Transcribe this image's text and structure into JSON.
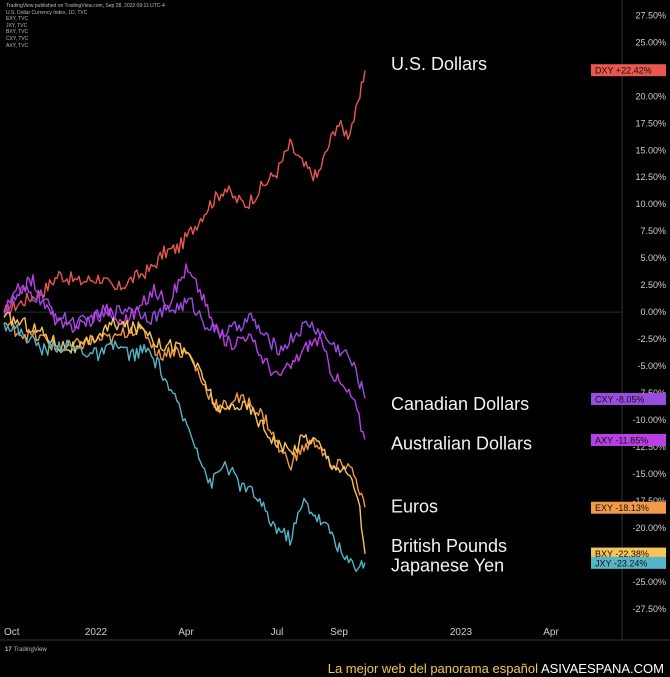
{
  "header": {
    "lines": [
      "TradingView published on TradingView.com, Sep 28, 2022 09:11 UTC-4",
      "U.S. Dollar Currency Index, 1D, TVC",
      "EXY, TVC",
      "JXY, TVC",
      "BXY, TVC",
      "CXY, TVC",
      "AXY, TVC"
    ]
  },
  "footer": {
    "logo_text": "TradingView"
  },
  "watermark": {
    "text": "La mejor web del panorama español",
    "site": "ASIVAESPANA.COM"
  },
  "colors": {
    "background": "#000000",
    "DXY": "#e8584f",
    "CXY": "#9a4ce0",
    "AXY": "#b93fe6",
    "EXY": "#f39a48",
    "BXY": "#f6c458",
    "JXY": "#55b4c6"
  },
  "chart_data": {
    "type": "line",
    "y_unit": "percent change",
    "ylim": [
      -29,
      28
    ],
    "y_ticks": [
      27.5,
      25,
      22.5,
      20,
      17.5,
      15,
      12.5,
      10,
      7.5,
      5,
      2.5,
      0,
      -2.5,
      -5,
      -7.5,
      -10,
      -12.5,
      -15,
      -17.5,
      -20,
      -22.5,
      -25,
      -27.5
    ],
    "y_tick_labels": [
      "27.50%",
      "25.00%",
      "22.50%",
      "20.00%",
      "17.50%",
      "15.00%",
      "12.50%",
      "10.00%",
      "7.50%",
      "5.00%",
      "2.50%",
      "0.00%",
      "-2.50%",
      "-5.00%",
      "-7.50%",
      "-10.00%",
      "-12.50%",
      "-15.00%",
      "-17.50%",
      "-20.00%",
      "-22.50%",
      "-25.00%",
      "-27.50%"
    ],
    "x_ticks": [
      "Oct",
      "2022",
      "Apr",
      "Jul",
      "Sep",
      "2023",
      "Apr"
    ],
    "x_tick_dates": [
      "2021-10-01",
      "2022-01-01",
      "2022-04-01",
      "2022-07-01",
      "2022-09-01",
      "2023-01-01",
      "2023-04-01"
    ],
    "x_range": [
      "2021-10-01",
      "2023-06-01"
    ],
    "grid": false,
    "series": [
      {
        "name": "U.S. Dollars",
        "badge": "DXY",
        "badge_value": "+22.42%",
        "color": "#e8584f",
        "points": [
          [
            "2021-10-01",
            0
          ],
          [
            "2021-10-20",
            1
          ],
          [
            "2021-11-10",
            2
          ],
          [
            "2021-11-25",
            3.5
          ],
          [
            "2021-12-15",
            2.8
          ],
          [
            "2022-01-05",
            3.2
          ],
          [
            "2022-01-20",
            2
          ],
          [
            "2022-02-05",
            3
          ],
          [
            "2022-02-25",
            4
          ],
          [
            "2022-03-10",
            5.5
          ],
          [
            "2022-03-25",
            6
          ],
          [
            "2022-04-10",
            8
          ],
          [
            "2022-04-25",
            10
          ],
          [
            "2022-05-10",
            11.5
          ],
          [
            "2022-05-20",
            10.5
          ],
          [
            "2022-06-01",
            10
          ],
          [
            "2022-06-15",
            11.5
          ],
          [
            "2022-07-01",
            13
          ],
          [
            "2022-07-14",
            15.5
          ],
          [
            "2022-07-28",
            13.5
          ],
          [
            "2022-08-10",
            12.5
          ],
          [
            "2022-08-20",
            15
          ],
          [
            "2022-08-30",
            17.5
          ],
          [
            "2022-09-10",
            16.5
          ],
          [
            "2022-09-20",
            19
          ],
          [
            "2022-09-27",
            22.4
          ]
        ]
      },
      {
        "name": "Canadian Dollars",
        "badge": "CXY",
        "badge_value": "-8.05%",
        "color": "#9a4ce0",
        "points": [
          [
            "2021-10-01",
            0
          ],
          [
            "2021-10-20",
            2
          ],
          [
            "2021-11-10",
            1
          ],
          [
            "2021-11-25",
            -0.5
          ],
          [
            "2021-12-15",
            -1
          ],
          [
            "2022-01-05",
            -0.5
          ],
          [
            "2022-01-20",
            0
          ],
          [
            "2022-02-05",
            0.5
          ],
          [
            "2022-02-25",
            -0.5
          ],
          [
            "2022-03-10",
            0
          ],
          [
            "2022-03-25",
            0.5
          ],
          [
            "2022-04-05",
            1
          ],
          [
            "2022-04-20",
            -1
          ],
          [
            "2022-05-05",
            -2
          ],
          [
            "2022-05-20",
            -1.5
          ],
          [
            "2022-06-05",
            -0.5
          ],
          [
            "2022-06-20",
            -2.5
          ],
          [
            "2022-07-05",
            -3.5
          ],
          [
            "2022-07-15",
            -2.5
          ],
          [
            "2022-08-01",
            -1
          ],
          [
            "2022-08-15",
            -2
          ],
          [
            "2022-08-25",
            -3
          ],
          [
            "2022-09-10",
            -4
          ],
          [
            "2022-09-20",
            -6
          ],
          [
            "2022-09-27",
            -8
          ]
        ]
      },
      {
        "name": "Australian Dollars",
        "badge": "AXY",
        "badge_value": "-11.85%",
        "color": "#b93fe6",
        "points": [
          [
            "2021-10-01",
            0
          ],
          [
            "2021-10-15",
            2
          ],
          [
            "2021-10-30",
            3
          ],
          [
            "2021-11-15",
            0
          ],
          [
            "2021-12-01",
            -1.5
          ],
          [
            "2021-12-20",
            -1
          ],
          [
            "2022-01-10",
            0.5
          ],
          [
            "2022-01-25",
            -1
          ],
          [
            "2022-02-10",
            0
          ],
          [
            "2022-02-28",
            2
          ],
          [
            "2022-03-15",
            1
          ],
          [
            "2022-04-01",
            4
          ],
          [
            "2022-04-15",
            2
          ],
          [
            "2022-04-30",
            -1.5
          ],
          [
            "2022-05-15",
            -3
          ],
          [
            "2022-06-01",
            -2
          ],
          [
            "2022-06-15",
            -4
          ],
          [
            "2022-07-01",
            -6
          ],
          [
            "2022-07-15",
            -5
          ],
          [
            "2022-08-01",
            -3
          ],
          [
            "2022-08-12",
            -2.5
          ],
          [
            "2022-08-25",
            -5.5
          ],
          [
            "2022-09-05",
            -7
          ],
          [
            "2022-09-15",
            -8
          ],
          [
            "2022-09-27",
            -11.8
          ]
        ]
      },
      {
        "name": "Euros",
        "badge": "EXY",
        "badge_value": "-18.13%",
        "color": "#f39a48",
        "points": [
          [
            "2021-10-01",
            -1
          ],
          [
            "2021-10-20",
            -2
          ],
          [
            "2021-11-10",
            -2.5
          ],
          [
            "2021-11-25",
            -3.5
          ],
          [
            "2021-12-15",
            -3
          ],
          [
            "2022-01-05",
            -2.5
          ],
          [
            "2022-01-20",
            -2.5
          ],
          [
            "2022-02-05",
            -1.5
          ],
          [
            "2022-02-20",
            -2
          ],
          [
            "2022-03-05",
            -4
          ],
          [
            "2022-03-20",
            -3.5
          ],
          [
            "2022-04-05",
            -4
          ],
          [
            "2022-04-20",
            -7
          ],
          [
            "2022-05-05",
            -9
          ],
          [
            "2022-05-20",
            -8
          ],
          [
            "2022-06-05",
            -8.5
          ],
          [
            "2022-06-20",
            -10
          ],
          [
            "2022-07-05",
            -13
          ],
          [
            "2022-07-15",
            -14
          ],
          [
            "2022-07-28",
            -12.5
          ],
          [
            "2022-08-10",
            -12
          ],
          [
            "2022-08-25",
            -14.5
          ],
          [
            "2022-09-10",
            -14
          ],
          [
            "2022-09-20",
            -16
          ],
          [
            "2022-09-27",
            -18.1
          ]
        ]
      },
      {
        "name": "British Pounds",
        "badge": "BXY",
        "badge_value": "-22.38%",
        "color": "#f6c458",
        "points": [
          [
            "2021-10-01",
            -0.5
          ],
          [
            "2021-10-20",
            -1
          ],
          [
            "2021-11-10",
            -2
          ],
          [
            "2021-11-25",
            -3
          ],
          [
            "2021-12-15",
            -3.5
          ],
          [
            "2022-01-05",
            -2
          ],
          [
            "2022-01-20",
            -1
          ],
          [
            "2022-02-05",
            -1.5
          ],
          [
            "2022-02-20",
            -1.5
          ],
          [
            "2022-03-05",
            -3
          ],
          [
            "2022-03-20",
            -3
          ],
          [
            "2022-04-05",
            -4
          ],
          [
            "2022-04-20",
            -6.5
          ],
          [
            "2022-05-05",
            -9.5
          ],
          [
            "2022-05-20",
            -8.5
          ],
          [
            "2022-06-05",
            -9
          ],
          [
            "2022-06-20",
            -11
          ],
          [
            "2022-07-05",
            -12.5
          ],
          [
            "2022-07-15",
            -13
          ],
          [
            "2022-07-28",
            -11.5
          ],
          [
            "2022-08-10",
            -12
          ],
          [
            "2022-08-25",
            -14
          ],
          [
            "2022-09-10",
            -15
          ],
          [
            "2022-09-20",
            -17
          ],
          [
            "2022-09-27",
            -22.4
          ]
        ]
      },
      {
        "name": "Japanese Yen",
        "badge": "JXY",
        "badge_value": "-23.24%",
        "color": "#55b4c6",
        "points": [
          [
            "2021-10-01",
            -1
          ],
          [
            "2021-10-20",
            -2
          ],
          [
            "2021-11-10",
            -3.5
          ],
          [
            "2021-11-25",
            -3
          ],
          [
            "2021-12-15",
            -3.5
          ],
          [
            "2022-01-05",
            -4
          ],
          [
            "2022-01-20",
            -3
          ],
          [
            "2022-02-05",
            -4
          ],
          [
            "2022-02-20",
            -3.5
          ],
          [
            "2022-03-05",
            -5
          ],
          [
            "2022-03-15",
            -7
          ],
          [
            "2022-03-25",
            -9
          ],
          [
            "2022-04-10",
            -12
          ],
          [
            "2022-04-25",
            -16
          ],
          [
            "2022-05-10",
            -14
          ],
          [
            "2022-05-25",
            -16
          ],
          [
            "2022-06-10",
            -17
          ],
          [
            "2022-06-25",
            -19.5
          ],
          [
            "2022-07-14",
            -21
          ],
          [
            "2022-07-28",
            -17.5
          ],
          [
            "2022-08-10",
            -19
          ],
          [
            "2022-08-25",
            -20.5
          ],
          [
            "2022-09-07",
            -23
          ],
          [
            "2022-09-20",
            -23.5
          ],
          [
            "2022-09-27",
            -23.2
          ]
        ]
      }
    ]
  }
}
